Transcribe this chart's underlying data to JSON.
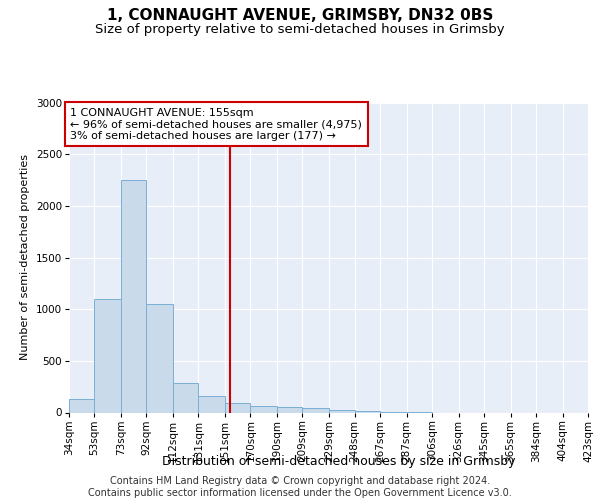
{
  "title": "1, CONNAUGHT AVENUE, GRIMSBY, DN32 0BS",
  "subtitle": "Size of property relative to semi-detached houses in Grimsby",
  "xlabel": "Distribution of semi-detached houses by size in Grimsby",
  "ylabel": "Number of semi-detached properties",
  "footer_line1": "Contains HM Land Registry data © Crown copyright and database right 2024.",
  "footer_line2": "Contains public sector information licensed under the Open Government Licence v3.0.",
  "annotation_title": "1 CONNAUGHT AVENUE: 155sqm",
  "annotation_line1": "← 96% of semi-detached houses are smaller (4,975)",
  "annotation_line2": "3% of semi-detached houses are larger (177) →",
  "bar_edges": [
    34,
    53,
    73,
    92,
    112,
    131,
    151,
    170,
    190,
    209,
    229,
    248,
    267,
    287,
    306,
    326,
    345,
    365,
    384,
    404,
    423
  ],
  "bar_heights": [
    130,
    1100,
    2250,
    1050,
    290,
    160,
    95,
    60,
    50,
    40,
    20,
    10,
    5,
    5,
    0,
    0,
    0,
    0,
    0,
    0
  ],
  "bar_color": "#c9daea",
  "bar_edge_color": "#7aafd4",
  "vline_color": "#cc0000",
  "vline_x": 155,
  "plot_bg_color": "#e8eef7",
  "ylim": [
    0,
    3000
  ],
  "yticks": [
    0,
    500,
    1000,
    1500,
    2000,
    2500,
    3000
  ],
  "title_fontsize": 11,
  "subtitle_fontsize": 9.5,
  "xlabel_fontsize": 9,
  "ylabel_fontsize": 8,
  "tick_fontsize": 7.5,
  "annotation_fontsize": 8,
  "footer_fontsize": 7
}
